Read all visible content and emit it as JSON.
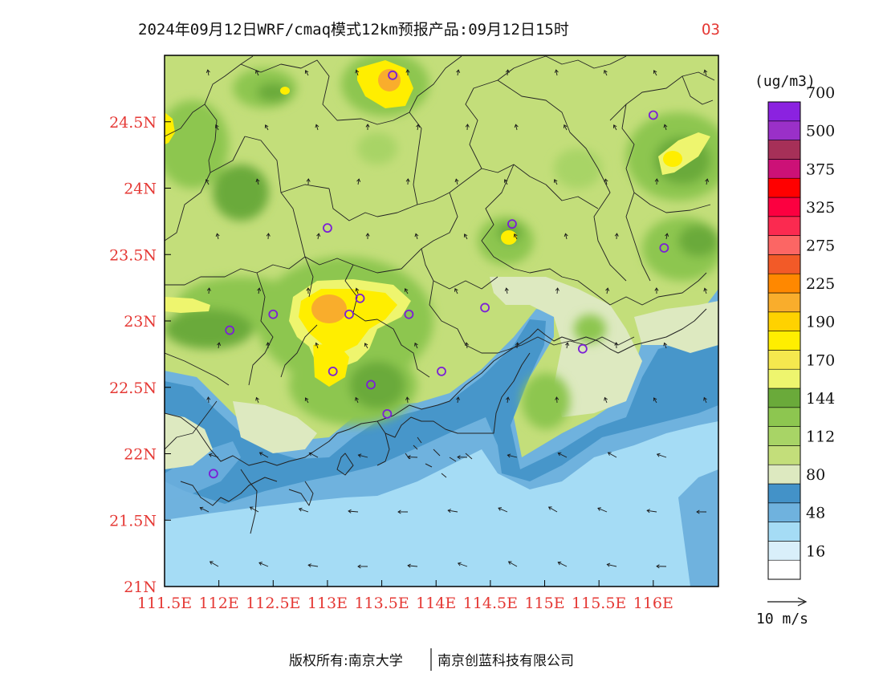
{
  "header": {
    "title": "2024年09月12日WRF/cmaq模式12km预报产品:09月12日15时",
    "species": "O3"
  },
  "map": {
    "lon_range": [
      111.5,
      116.6
    ],
    "lat_range": [
      21.0,
      25.0
    ],
    "x_ticks": [
      {
        "lon": 111.5,
        "label": "111.5E"
      },
      {
        "lon": 112.0,
        "label": "112E"
      },
      {
        "lon": 112.5,
        "label": "112.5E"
      },
      {
        "lon": 113.0,
        "label": "113E"
      },
      {
        "lon": 113.5,
        "label": "113.5E"
      },
      {
        "lon": 114.0,
        "label": "114E"
      },
      {
        "lon": 114.5,
        "label": "114.5E"
      },
      {
        "lon": 115.0,
        "label": "115E"
      },
      {
        "lon": 115.5,
        "label": "115.5E"
      },
      {
        "lon": 116.0,
        "label": "116E"
      }
    ],
    "y_ticks": [
      {
        "lat": 21.0,
        "label": "21N"
      },
      {
        "lat": 21.5,
        "label": "21.5N"
      },
      {
        "lat": 22.0,
        "label": "22N"
      },
      {
        "lat": 22.5,
        "label": "22.5N"
      },
      {
        "lat": 23.0,
        "label": "23N"
      },
      {
        "lat": 23.5,
        "label": "23.5N"
      },
      {
        "lat": 24.0,
        "label": "24N"
      },
      {
        "lat": 24.5,
        "label": "24.5N"
      }
    ],
    "stations": [
      {
        "lon": 113.6,
        "lat": 24.85
      },
      {
        "lon": 116.0,
        "lat": 24.55
      },
      {
        "lon": 113.0,
        "lat": 23.7
      },
      {
        "lon": 114.7,
        "lat": 23.73
      },
      {
        "lon": 116.1,
        "lat": 23.55
      },
      {
        "lon": 112.5,
        "lat": 23.05
      },
      {
        "lon": 112.1,
        "lat": 22.93
      },
      {
        "lon": 113.2,
        "lat": 23.05
      },
      {
        "lon": 113.3,
        "lat": 23.17
      },
      {
        "lon": 113.75,
        "lat": 23.05
      },
      {
        "lon": 114.45,
        "lat": 23.1
      },
      {
        "lon": 113.05,
        "lat": 22.62
      },
      {
        "lon": 113.4,
        "lat": 22.52
      },
      {
        "lon": 114.05,
        "lat": 22.62
      },
      {
        "lon": 113.55,
        "lat": 22.3
      },
      {
        "lon": 115.35,
        "lat": 22.79
      },
      {
        "lon": 111.95,
        "lat": 21.85
      }
    ]
  },
  "colorbar": {
    "unit_label": "(ug/m3)",
    "colors": [
      "#ffffff",
      "#d9effa",
      "#a5dcf5",
      "#6fb2de",
      "#4392c8",
      "#dde9c0",
      "#c3de7a",
      "#a8d466",
      "#8dc650",
      "#6aaa3a",
      "#eef56e",
      "#f5e84e",
      "#ffee00",
      "#ffd200",
      "#f9ad2c",
      "#ff8800",
      "#f25a28",
      "#fc6664",
      "#fb2a50",
      "#fc0040",
      "#ff0000",
      "#cc1177",
      "#a63058",
      "#9a30c8",
      "#8b22e0"
    ],
    "labels": [
      {
        "after_band": 1,
        "text": "16"
      },
      {
        "after_band": 3,
        "text": "48"
      },
      {
        "after_band": 5,
        "text": "80"
      },
      {
        "after_band": 7,
        "text": "112"
      },
      {
        "after_band": 9,
        "text": "144"
      },
      {
        "after_band": 11,
        "text": "170"
      },
      {
        "after_band": 13,
        "text": "190"
      },
      {
        "after_band": 15,
        "text": "225"
      },
      {
        "after_band": 17,
        "text": "275"
      },
      {
        "after_band": 19,
        "text": "325"
      },
      {
        "after_band": 21,
        "text": "375"
      },
      {
        "after_band": 23,
        "text": "500"
      },
      {
        "after_band": 25,
        "text": "700"
      }
    ]
  },
  "wind_legend": {
    "label": "10 m/s"
  },
  "footer": {
    "left": "版权所有:南京大学",
    "right": "南京创蓝科技有限公司"
  },
  "colors": {
    "axis_label": "#e53935",
    "station_ring": "#7b1fd6",
    "arrow": "#1a1a1a"
  }
}
